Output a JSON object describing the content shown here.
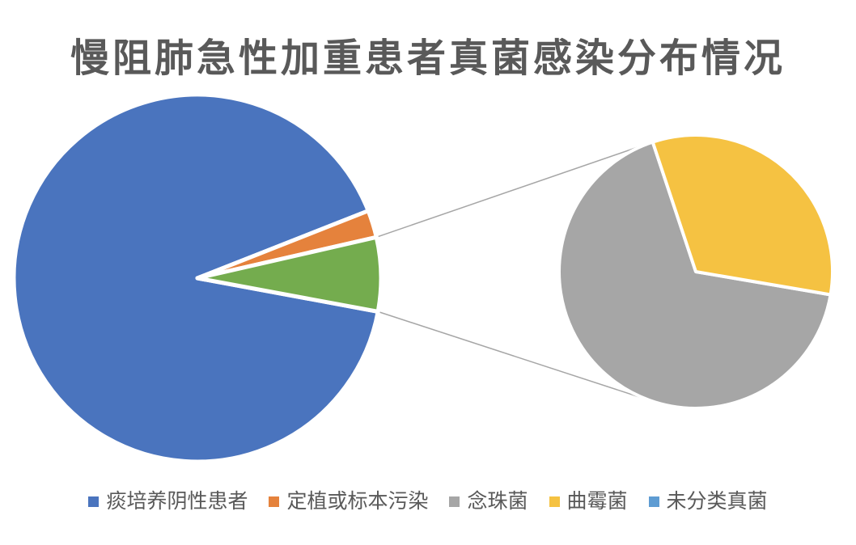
{
  "page": {
    "background_color": "#ffffff"
  },
  "chart_data": {
    "type": "pie",
    "variant": "pie-of-pie",
    "title": "慢阻肺急性加重患者真菌感染分布情况",
    "title_color": "#595959",
    "legend_position": "bottom",
    "grid": false,
    "connector_color": "#A6A6A6",
    "slice_border_color": "#ffffff",
    "main_pie": {
      "start_angle_deg": 100.5,
      "slices": [
        {
          "name": "sputum-culture-negative",
          "label": "痰培养阴性患者",
          "percent": 91.1,
          "color": "#4A74BE"
        },
        {
          "name": "colonization-or-contamination",
          "label": "定植或标本污染",
          "percent": 2.4,
          "color": "#E5823C"
        },
        {
          "name": "fungal-infection-group",
          "label": "",
          "percent": 6.5,
          "color": "#74AC4E",
          "expands_to": "secondary_pie"
        }
      ]
    },
    "secondary_pie": {
      "start_angle_deg": 99.7,
      "group_percent_of_total": 6.5,
      "slices": [
        {
          "name": "candida",
          "label": "念珠菌",
          "percent_of_group": 67.2,
          "percent_of_total": 4.4,
          "color": "#A6A6A6"
        },
        {
          "name": "aspergillus",
          "label": "曲霉菌",
          "percent_of_group": 32.8,
          "percent_of_total": 2.1,
          "color": "#F5C242"
        },
        {
          "name": "unclassified-fungi",
          "label": "未分类真菌",
          "percent_of_group": 0,
          "percent_of_total": 0,
          "color": "#5E9CD3"
        }
      ]
    },
    "legend": {
      "text_color": "#595959",
      "items": [
        {
          "label": "痰培养阴性患者",
          "color": "#4A74BE"
        },
        {
          "label": "定植或标本污染",
          "color": "#E5823C"
        },
        {
          "label": "念珠菌",
          "color": "#A6A6A6"
        },
        {
          "label": "曲霉菌",
          "color": "#F5C242"
        },
        {
          "label": "未分类真菌",
          "color": "#5E9CD3"
        }
      ]
    }
  }
}
